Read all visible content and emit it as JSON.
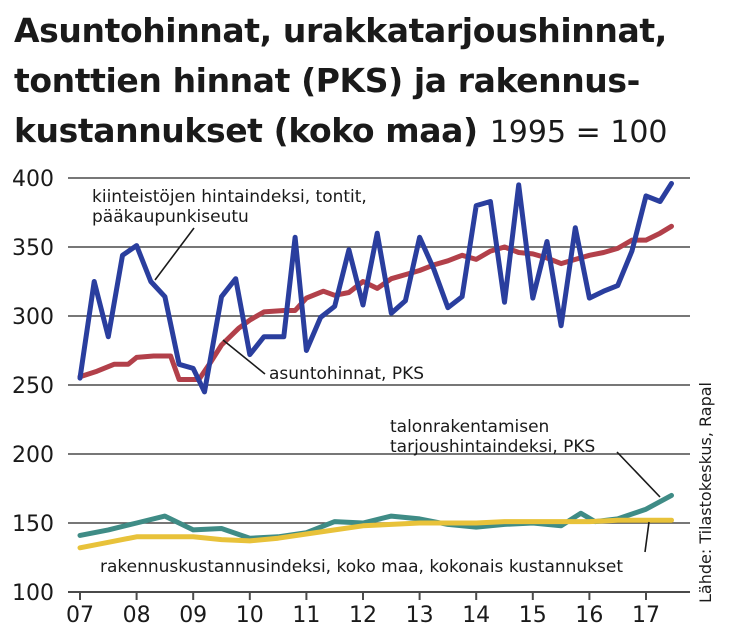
{
  "title": {
    "line1": "Asuntohinnat, urakkatarjoushinnat,",
    "line2": "tonttien hinnat (PKS) ja rakennus-",
    "line3": "kustannukset (koko maa)",
    "subtitle": "1995 = 100"
  },
  "source": "Lähde: Tilastokeskus, Rapal",
  "colors": {
    "plots_blue": "#2a3e9e",
    "apartments_red": "#b2404a",
    "tender_teal": "#3f8c86",
    "construction_yellow": "#e8c23a",
    "grid": "#4a4a4a"
  },
  "chart_data": {
    "type": "line",
    "title": "Asuntohinnat, urakkatarjoushinnat, tonttien hinnat (PKS) ja rakennuskustannukset (koko maa)",
    "subtitle": "1995 = 100",
    "xlabel": "",
    "ylabel": "",
    "ylim": [
      100,
      400
    ],
    "xlim": [
      2007,
      2017.6
    ],
    "yticks": [
      100,
      150,
      200,
      250,
      300,
      350,
      400
    ],
    "xticks": [
      "07",
      "08",
      "09",
      "10",
      "11",
      "12",
      "13",
      "14",
      "15",
      "16",
      "17"
    ],
    "grid": "horizontal",
    "series": [
      {
        "name": "kiinteistöjen hintaindeksi, tontit, pääkaupunkiseutu",
        "color": "#2a3e9e",
        "x": [
          2007.0,
          2007.25,
          2007.5,
          2007.75,
          2008.0,
          2008.25,
          2008.5,
          2008.75,
          2009.0,
          2009.2,
          2009.5,
          2009.75,
          2010.0,
          2010.25,
          2010.6,
          2010.8,
          2011.0,
          2011.25,
          2011.5,
          2011.75,
          2012.0,
          2012.25,
          2012.5,
          2012.75,
          2013.0,
          2013.25,
          2013.5,
          2013.75,
          2014.0,
          2014.25,
          2014.5,
          2014.75,
          2015.0,
          2015.25,
          2015.5,
          2015.75,
          2016.0,
          2016.25,
          2016.5,
          2016.75,
          2017.0,
          2017.25,
          2017.45
        ],
        "values": [
          255,
          325,
          285,
          344,
          351,
          325,
          314,
          265,
          262,
          245,
          314,
          327,
          272,
          285,
          285,
          357,
          275,
          299,
          307,
          348,
          308,
          360,
          302,
          311,
          357,
          334,
          306,
          314,
          380,
          383,
          310,
          395,
          313,
          354,
          293,
          364,
          313,
          318,
          322,
          347,
          387,
          383,
          396
        ]
      },
      {
        "name": "asuntohinnat, PKS",
        "color": "#b2404a",
        "x": [
          2007.0,
          2007.3,
          2007.6,
          2007.85,
          2008.0,
          2008.3,
          2008.6,
          2008.75,
          2009.1,
          2009.3,
          2009.5,
          2009.8,
          2010.0,
          2010.25,
          2010.6,
          2010.8,
          2011.0,
          2011.3,
          2011.5,
          2011.75,
          2012.0,
          2012.25,
          2012.5,
          2012.75,
          2013.0,
          2013.25,
          2013.5,
          2013.75,
          2014.0,
          2014.25,
          2014.5,
          2014.75,
          2015.0,
          2015.25,
          2015.5,
          2015.75,
          2016.0,
          2016.25,
          2016.5,
          2016.75,
          2017.0,
          2017.25,
          2017.45
        ],
        "values": [
          256,
          260,
          265,
          265,
          270,
          271,
          271,
          254,
          254,
          266,
          279,
          291,
          297,
          303,
          304,
          304,
          313,
          318,
          315,
          317,
          325,
          320,
          327,
          330,
          333,
          337,
          340,
          344,
          341,
          347,
          350,
          346,
          345,
          342,
          338,
          341,
          344,
          346,
          349,
          355,
          355,
          360,
          365
        ]
      },
      {
        "name": "talonrakentamisen tarjoushintaindeksi, PKS",
        "color": "#3f8c86",
        "x": [
          2007.0,
          2007.5,
          2008.0,
          2008.5,
          2009.0,
          2009.5,
          2010.0,
          2010.5,
          2011.0,
          2011.5,
          2012.0,
          2012.5,
          2013.0,
          2013.5,
          2014.0,
          2014.5,
          2015.0,
          2015.5,
          2015.85,
          2016.1,
          2016.5,
          2017.0,
          2017.45
        ],
        "values": [
          141,
          145,
          150,
          155,
          145,
          146,
          139,
          140,
          143,
          151,
          150,
          155,
          153,
          149,
          147,
          149,
          150,
          148,
          157,
          151,
          153,
          160,
          170
        ]
      },
      {
        "name": "rakennuskustannusindeksi, koko maa, kokonais kustannukset",
        "color": "#e8c23a",
        "x": [
          2007.0,
          2007.5,
          2008.0,
          2008.5,
          2009.0,
          2009.5,
          2010.0,
          2010.5,
          2011.0,
          2011.5,
          2012.0,
          2012.5,
          2013.0,
          2013.5,
          2014.0,
          2014.5,
          2015.0,
          2015.5,
          2016.0,
          2016.5,
          2017.0,
          2017.45
        ],
        "values": [
          132,
          136,
          140,
          140,
          140,
          138,
          137,
          139,
          142,
          145,
          148,
          149,
          150,
          150,
          150,
          151,
          151,
          151,
          151,
          152,
          152,
          152
        ]
      }
    ],
    "annotations": [
      {
        "id": "plots",
        "lines": [
          "kiinteistöjen hintaindeksi, tontit,",
          "pääkaupunkiseutu"
        ]
      },
      {
        "id": "apartments",
        "lines": [
          "asuntohinnat, PKS"
        ]
      },
      {
        "id": "tender",
        "lines": [
          "talonrakentamisen",
          "tarjoushintaindeksi, PKS"
        ]
      },
      {
        "id": "construction",
        "lines": [
          "rakennuskustannusindeksi, koko maa, kokonais kustannukset"
        ]
      }
    ]
  }
}
